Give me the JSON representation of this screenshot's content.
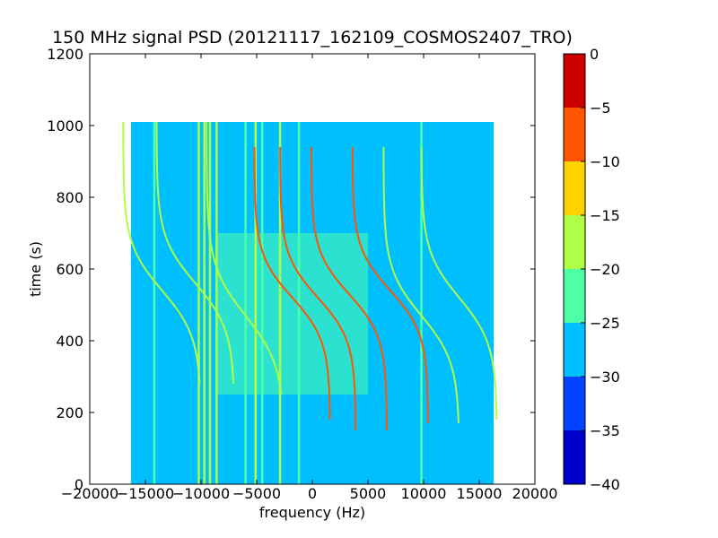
{
  "chart_data": {
    "type": "heatmap",
    "title": "150 MHz signal PSD (20121117_162109_COSMOS2407_TRO)",
    "xlabel": "frequency (Hz)",
    "ylabel": "time (s)",
    "xlim": [
      -20000,
      20000
    ],
    "ylim": [
      0,
      1200
    ],
    "x_ticks": [
      -20000,
      -15000,
      -10000,
      -5000,
      0,
      5000,
      10000,
      15000,
      20000
    ],
    "x_tick_labels": [
      "−20000",
      "−15000",
      "−10000",
      "−5000",
      "0",
      "5000",
      "10000",
      "15000",
      "20000"
    ],
    "y_ticks": [
      0,
      200,
      400,
      600,
      800,
      1000,
      1200
    ],
    "y_tick_labels": [
      "0",
      "200",
      "400",
      "600",
      "800",
      "1000",
      "1200"
    ],
    "data_extent": {
      "x": [
        -16300,
        16300
      ],
      "y": [
        0,
        1010
      ]
    },
    "background_level": -27.5,
    "colorbar": {
      "range": [
        -40,
        0
      ],
      "ticks": [
        0,
        -5,
        -10,
        -15,
        -20,
        -25,
        -30,
        -35,
        -40
      ],
      "tick_labels": [
        "0",
        "−5",
        "−10",
        "−15",
        "−20",
        "−25",
        "−30",
        "−35",
        "−40"
      ],
      "levels": [
        {
          "from": -40,
          "to": -35,
          "color": "#0000cd"
        },
        {
          "from": -35,
          "to": -30,
          "color": "#0044ff"
        },
        {
          "from": -30,
          "to": -25,
          "color": "#00bfff"
        },
        {
          "from": -25,
          "to": -20,
          "color": "#4dffa8"
        },
        {
          "from": -20,
          "to": -15,
          "color": "#b0ff46"
        },
        {
          "from": -15,
          "to": -10,
          "color": "#ffd200"
        },
        {
          "from": -10,
          "to": -5,
          "color": "#ff5500"
        },
        {
          "from": -5,
          "to": 0,
          "color": "#cd0000"
        }
      ]
    },
    "noise_band": {
      "x": [
        -8500,
        5000
      ],
      "y": [
        250,
        700
      ],
      "level": -22.5
    },
    "vertical_lines": [
      {
        "x": -14200,
        "level": -22.5
      },
      {
        "x": -10200,
        "level": -17.5
      },
      {
        "x": -9700,
        "level": -17.5
      },
      {
        "x": -9200,
        "level": -17.5
      },
      {
        "x": -8600,
        "level": -17.5
      },
      {
        "x": -6000,
        "level": -22.5
      },
      {
        "x": -5100,
        "level": -17.5
      },
      {
        "x": -4500,
        "level": -22.5
      },
      {
        "x": -2900,
        "level": -17.5
      },
      {
        "x": -1200,
        "level": -22.5
      },
      {
        "x": 9800,
        "level": -22.5
      }
    ],
    "doppler_traces": [
      {
        "center_x": -13500,
        "center_t": 540,
        "amplitude": 3500,
        "width": 130,
        "t_range": [
          280,
          1010
        ],
        "level": -17.5
      },
      {
        "center_x": -10500,
        "center_t": 560,
        "amplitude": 3500,
        "width": 130,
        "t_range": [
          280,
          1010
        ],
        "level": -17.5
      },
      {
        "center_x": -6000,
        "center_t": 470,
        "amplitude": 3500,
        "width": 140,
        "t_range": [
          250,
          1010
        ],
        "level": -17.5
      },
      {
        "center_x": -1800,
        "center_t": 520,
        "amplitude": 3400,
        "width": 120,
        "t_range": [
          180,
          940
        ],
        "level": -7.5
      },
      {
        "center_x": 500,
        "center_t": 520,
        "amplitude": 3400,
        "width": 120,
        "t_range": [
          150,
          940
        ],
        "level": -7.5
      },
      {
        "center_x": 3300,
        "center_t": 530,
        "amplitude": 3400,
        "width": 120,
        "t_range": [
          150,
          940
        ],
        "level": -7.5
      },
      {
        "center_x": 7000,
        "center_t": 540,
        "amplitude": 3400,
        "width": 120,
        "t_range": [
          170,
          940
        ],
        "level": -7.5
      },
      {
        "center_x": 9800,
        "center_t": 470,
        "amplitude": 3400,
        "width": 130,
        "t_range": [
          170,
          940
        ],
        "level": -17.5
      },
      {
        "center_x": 13200,
        "center_t": 520,
        "amplitude": 3400,
        "width": 130,
        "t_range": [
          180,
          940
        ],
        "level": -17.5
      }
    ]
  }
}
